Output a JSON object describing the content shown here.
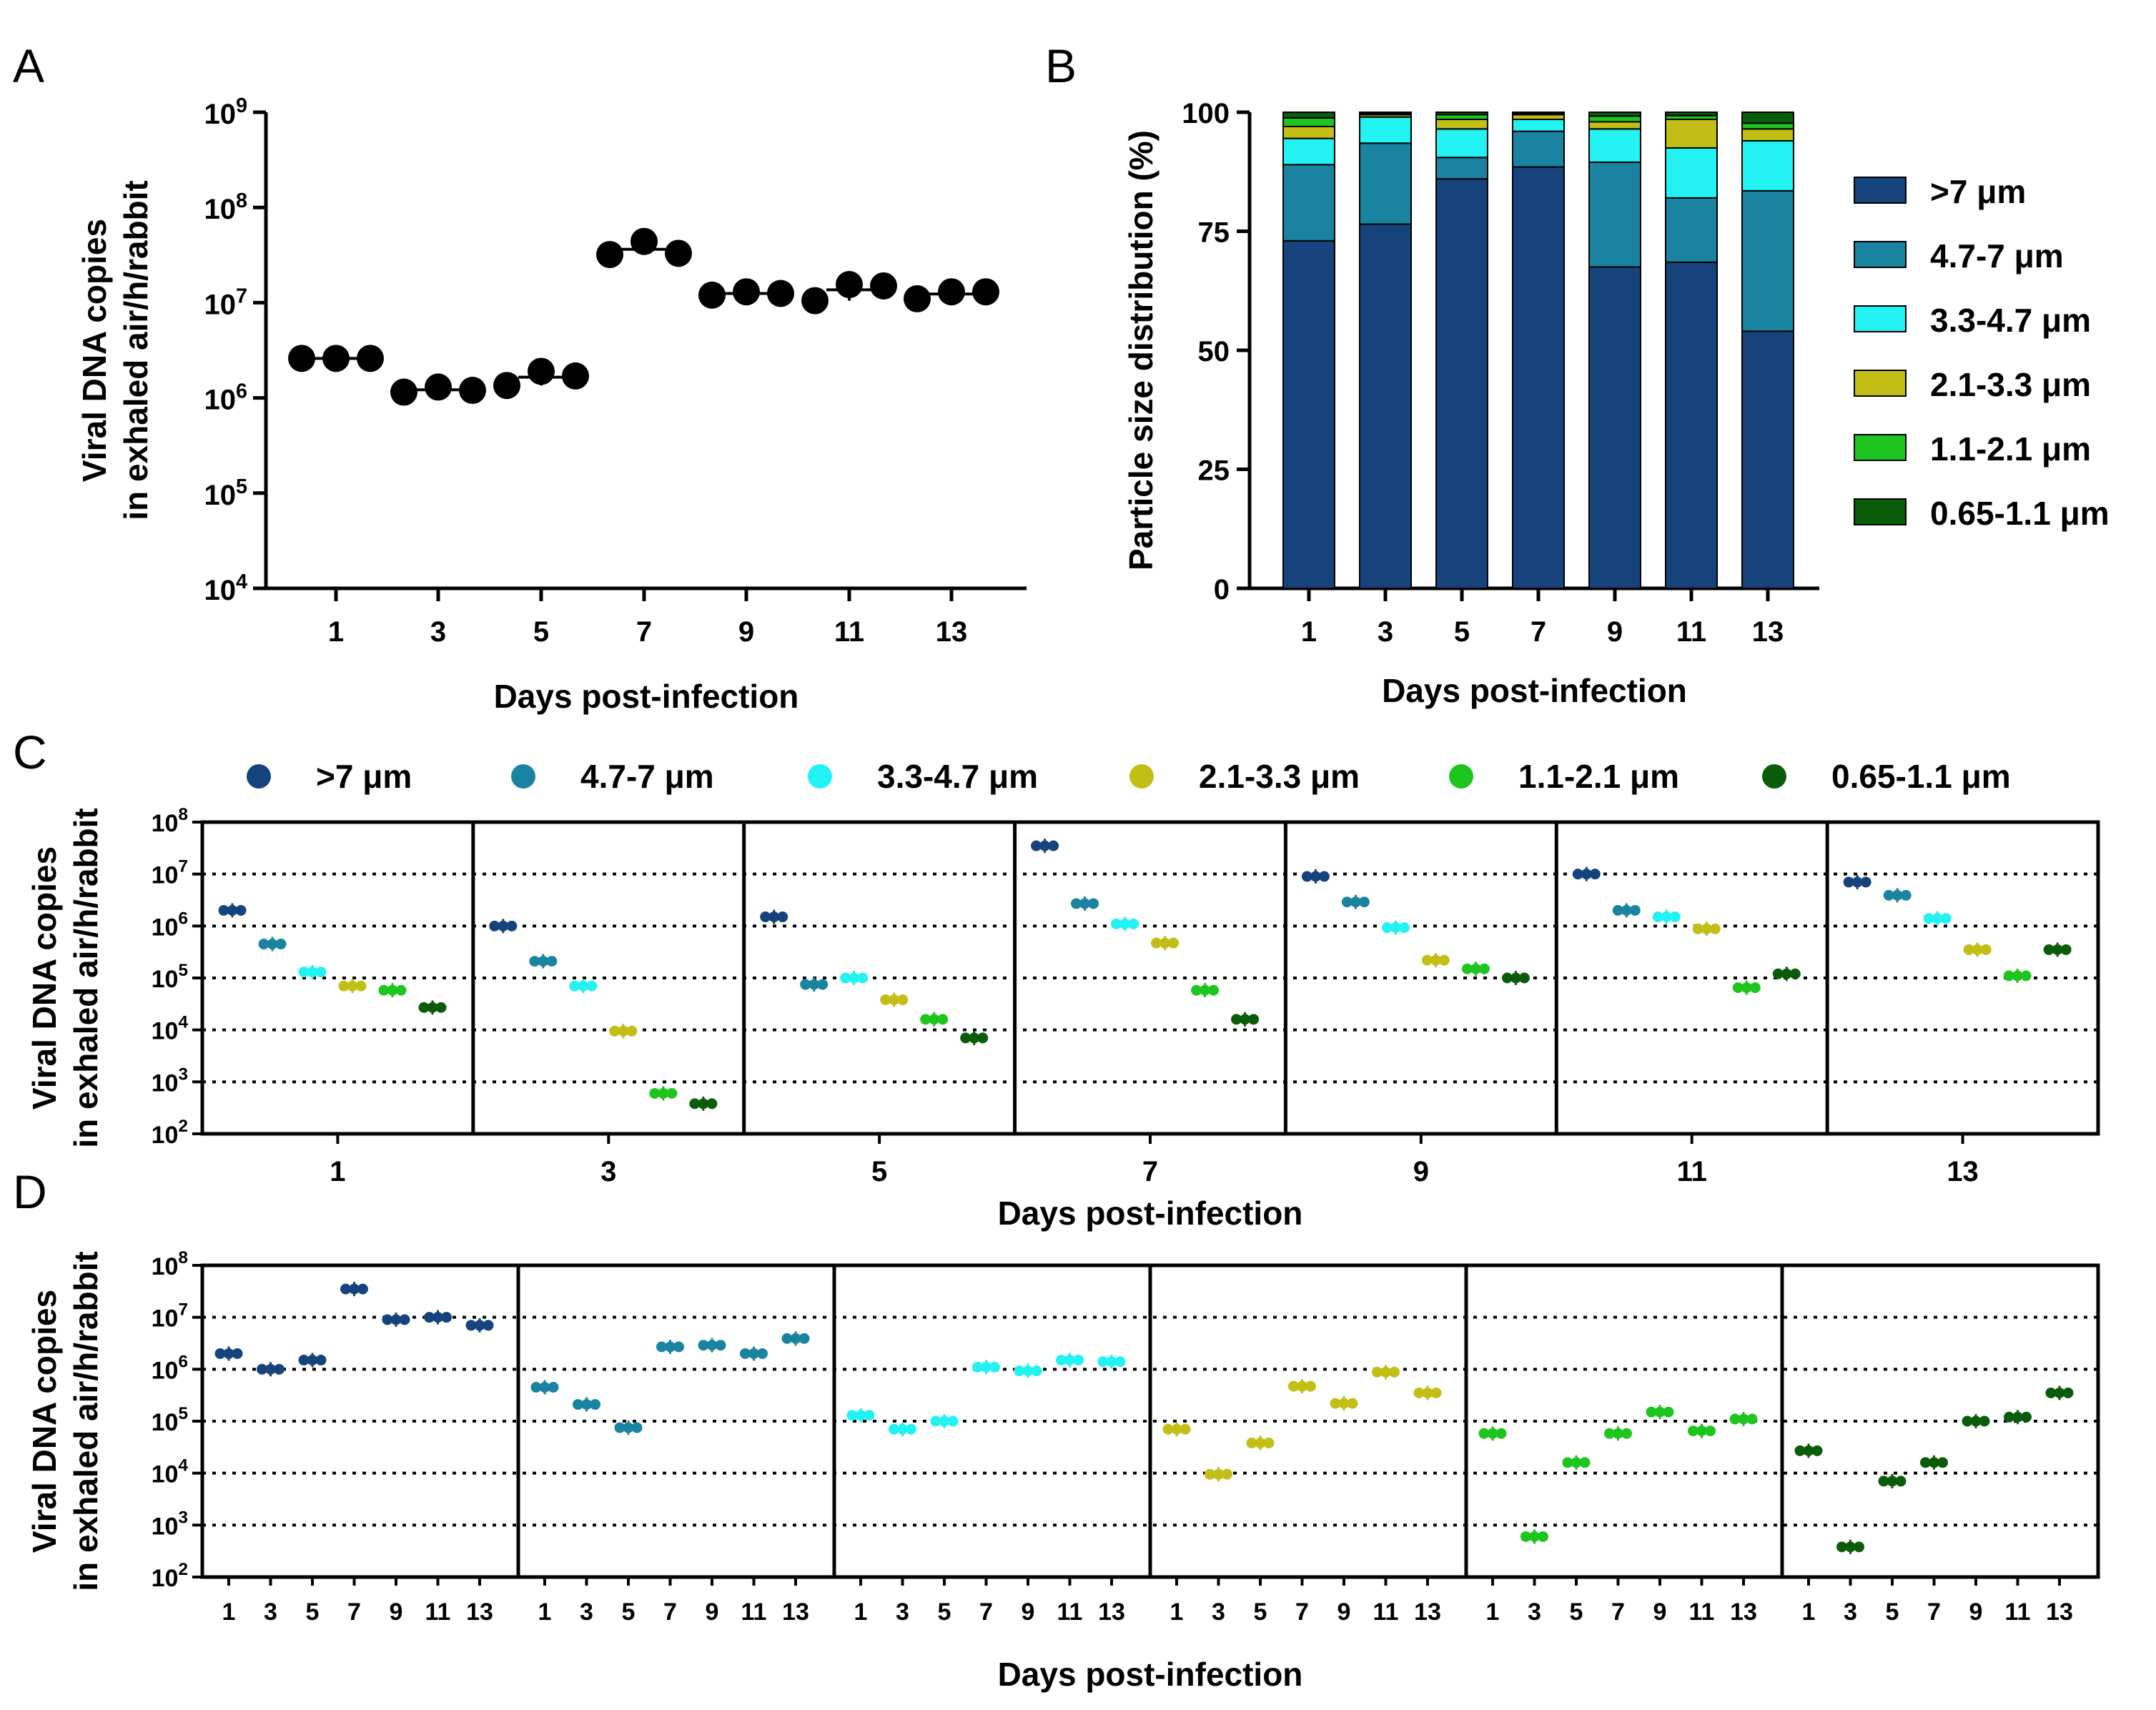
{
  "panels": {
    "a": "A",
    "b": "B",
    "c": "C",
    "d": "D"
  },
  "colors": {
    "gt7": "#17437c",
    "s4_7_7": "#1a84a0",
    "s3_3_4_7": "#22f2f2",
    "s2_1_3_3": "#c2be15",
    "s1_1_2_1": "#1ec51e",
    "s0_65_1_1": "#0a5c0a"
  },
  "chart_data": [
    {
      "id": "A",
      "type": "scatter",
      "title": "",
      "xlabel": "Days post-infection",
      "ylabel": [
        "Viral DNA copies",
        "in exhaled air/h/rabbit"
      ],
      "yscale": "log",
      "ylim": [
        10000,
        1000000000
      ],
      "ytick_base": "10",
      "ytick_exponents": [
        "4",
        "5",
        "6",
        "7",
        "8",
        "9"
      ],
      "categories": [
        "1",
        "3",
        "5",
        "7",
        "9",
        "11",
        "13"
      ],
      "points": [
        [
          2600000,
          2600000,
          2600000
        ],
        [
          1150000,
          1300000,
          1200000
        ],
        [
          1350000,
          1900000,
          1700000
        ],
        [
          32000000,
          44000000,
          33000000
        ],
        [
          12000000,
          13000000,
          12500000
        ],
        [
          10500000,
          15500000,
          15000000
        ],
        [
          11000000,
          13000000,
          13000000
        ]
      ]
    },
    {
      "id": "B",
      "type": "bar",
      "stacked": true,
      "xlabel": "Days post-infection",
      "ylabel": "Particle size distribution (%)",
      "ylim": [
        0,
        100
      ],
      "yticks": [
        "0",
        "25",
        "50",
        "75",
        "100"
      ],
      "categories": [
        "1",
        "3",
        "5",
        "7",
        "9",
        "11",
        "13"
      ],
      "legend_position": "right",
      "series": [
        {
          "name": ">7 μm",
          "values": [
            73,
            76.5,
            86,
            88.5,
            67.5,
            68.5,
            54
          ]
        },
        {
          "name": "4.7-7 μm",
          "values": [
            16,
            17,
            4.5,
            7.5,
            22,
            13.5,
            29.5
          ]
        },
        {
          "name": "3.3-4.7 μm",
          "values": [
            5.5,
            5.5,
            6,
            2.5,
            7,
            10.5,
            10.5
          ]
        },
        {
          "name": "2.1-3.3 μm",
          "values": [
            2.5,
            0.5,
            2,
            1,
            1.5,
            6,
            2.5
          ]
        },
        {
          "name": "1.1-2.1 μm",
          "values": [
            1.8,
            0.3,
            1,
            0.3,
            1.2,
            0.8,
            1.2
          ]
        },
        {
          "name": "0.65-1.1 μm",
          "values": [
            1.2,
            0.2,
            0.5,
            0.2,
            0.8,
            0.7,
            2.3
          ]
        }
      ]
    },
    {
      "id": "C",
      "type": "scatter",
      "yscale": "log",
      "ylim": [
        100,
        100000000
      ],
      "ytick_base": "10",
      "ytick_exponents": [
        "2",
        "3",
        "4",
        "5",
        "6",
        "7",
        "8"
      ],
      "xlabel": "Days post-infection",
      "ylabel": [
        "Viral DNA copies",
        "in exhaled air/h/rabbit"
      ],
      "legend_position": "top",
      "legend": [
        ">7 μm",
        "4.7-7 μm",
        "3.3-4.7 μm",
        "2.1-3.3 μm",
        "1.1-2.1 μm",
        "0.65-1.1 μm"
      ],
      "groups": [
        "1",
        "3",
        "5",
        "7",
        "9",
        "11",
        "13"
      ],
      "values": [
        [
          2000000,
          450000,
          130000,
          70000,
          58000,
          27000
        ],
        [
          1000000,
          210000,
          70000,
          9500,
          600,
          380
        ],
        [
          1500000,
          75000,
          100000,
          38000,
          16000,
          7000
        ],
        [
          35000000,
          2700000,
          1100000,
          470000,
          58000,
          16000
        ],
        [
          9000000,
          2900000,
          930000,
          220000,
          150000,
          100000
        ],
        [
          10000000,
          2000000,
          1500000,
          880000,
          65000,
          120000
        ],
        [
          7000000,
          3900000,
          1400000,
          350000,
          110000,
          350000
        ]
      ]
    },
    {
      "id": "D",
      "type": "scatter",
      "yscale": "log",
      "ylim": [
        100,
        100000000
      ],
      "ytick_base": "10",
      "ytick_exponents": [
        "2",
        "3",
        "4",
        "5",
        "6",
        "7",
        "8"
      ],
      "xlabel": "Days post-infection",
      "ylabel": [
        "Viral DNA copies",
        "in exhaled air/h/rabbit"
      ],
      "categories": [
        "1",
        "3",
        "5",
        "7",
        "9",
        "11",
        "13"
      ],
      "note": "one panel per particle size, same values as C regrouped by size"
    }
  ]
}
